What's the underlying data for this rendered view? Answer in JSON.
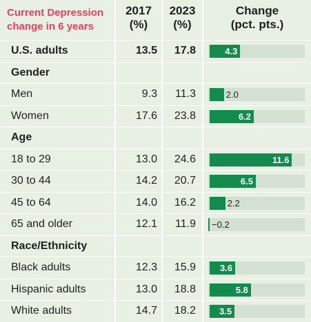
{
  "header": {
    "title_line1": "Current Depression",
    "title_line2": "change in 6 years",
    "col_2017_line1": "2017",
    "col_2017_line2": "(%)",
    "col_2023_line1": "2023",
    "col_2023_line2": "(%)",
    "col_change_line1": "Change",
    "col_change_line2": "(pct. pts.)"
  },
  "colors": {
    "title": "#e8425f",
    "bar": "#148a4e",
    "bar_track": "#d3e0d2",
    "background": "#e7f0e3"
  },
  "rows": [
    {
      "label": "U.S. adults",
      "type": "data",
      "bold": true,
      "v2017": "13.5",
      "v2023": "17.8",
      "change": "4.3"
    },
    {
      "label": "Gender",
      "type": "section"
    },
    {
      "label": "Men",
      "type": "data",
      "v2017": "9.3",
      "v2023": "11.3",
      "change": "2.0"
    },
    {
      "label": "Women",
      "type": "data",
      "v2017": "17.6",
      "v2023": "23.8",
      "change": "6.2"
    },
    {
      "label": "Age",
      "type": "section"
    },
    {
      "label": "18 to 29",
      "type": "data",
      "v2017": "13.0",
      "v2023": "24.6",
      "change": "11.6"
    },
    {
      "label": "30 to 44",
      "type": "data",
      "v2017": "14.2",
      "v2023": "20.7",
      "change": "6.5"
    },
    {
      "label": "45 to 64",
      "type": "data",
      "v2017": "14.0",
      "v2023": "16.2",
      "change": "2.2"
    },
    {
      "label": "65 and older",
      "type": "data",
      "v2017": "12.1",
      "v2023": "11.9",
      "change": "−0.2"
    },
    {
      "label": "Race/Ethnicity",
      "type": "section"
    },
    {
      "label": "Black adults",
      "type": "data",
      "v2017": "12.3",
      "v2023": "15.9",
      "change": "3.6"
    },
    {
      "label": "Hispanic adults",
      "type": "data",
      "v2017": "13.0",
      "v2023": "18.8",
      "change": "5.8"
    },
    {
      "label": "White adults",
      "type": "data",
      "v2017": "14.7",
      "v2023": "18.2",
      "change": "3.5"
    }
  ],
  "chart_data": {
    "type": "bar",
    "categories": [
      "U.S. adults",
      "Men",
      "Women",
      "18 to 29",
      "30 to 44",
      "45 to 64",
      "65 and older",
      "Black adults",
      "Hispanic adults",
      "White adults"
    ],
    "values": [
      4.3,
      2.0,
      6.2,
      11.6,
      6.5,
      2.2,
      -0.2,
      3.6,
      5.8,
      3.5
    ],
    "xlim": [
      -0.2,
      13.4
    ]
  }
}
